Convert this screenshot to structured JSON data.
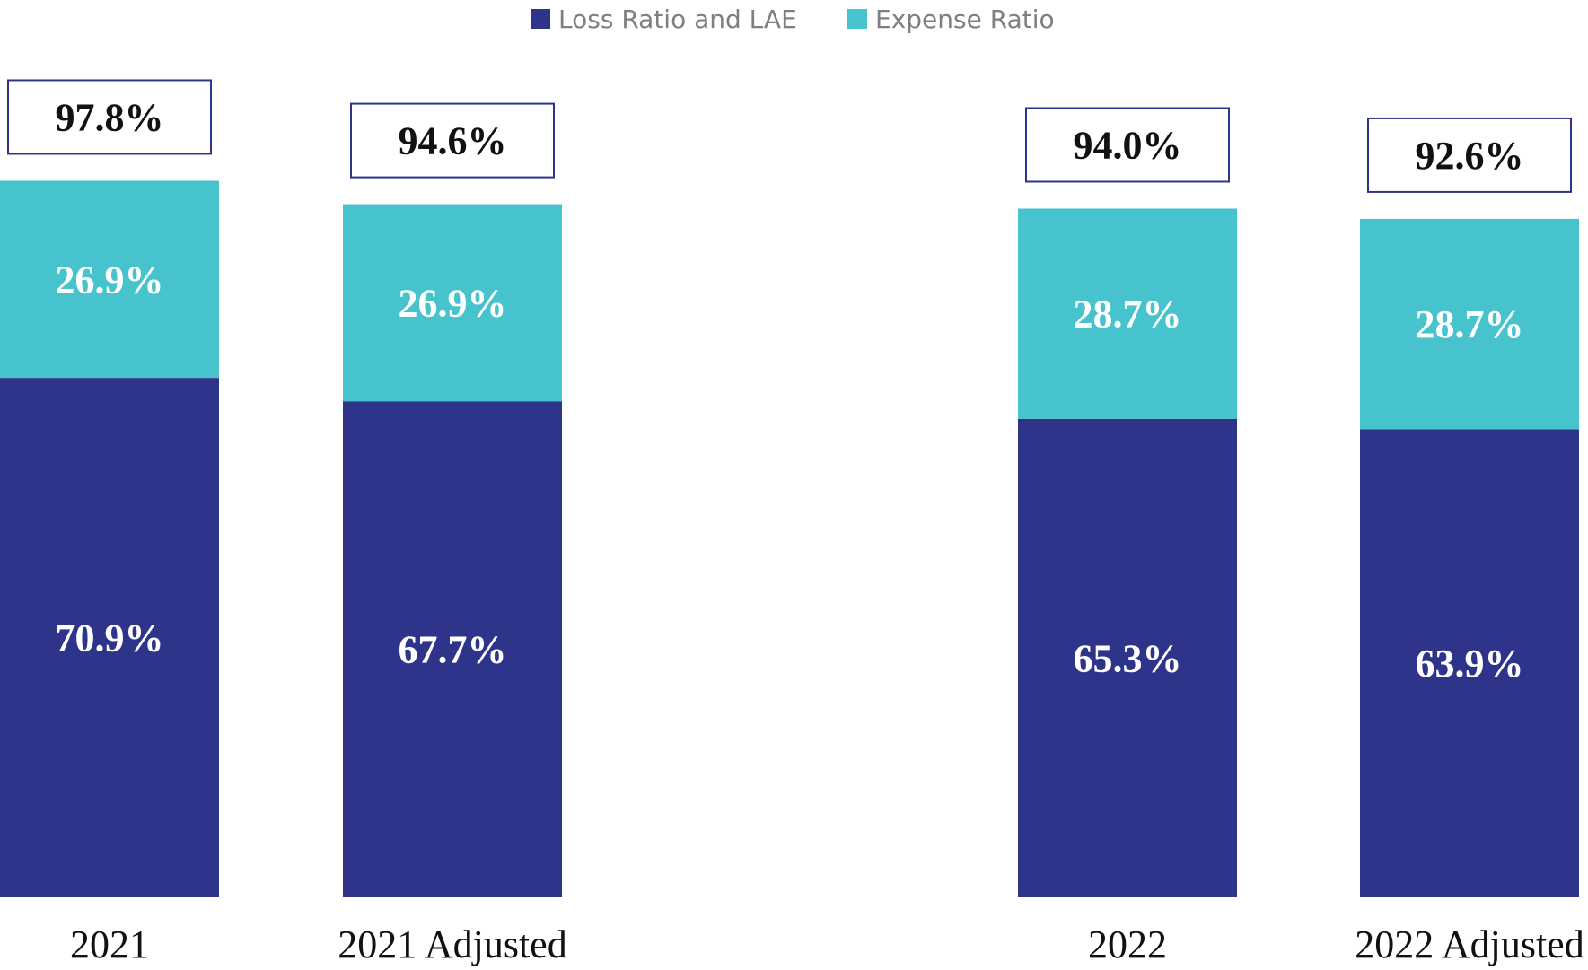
{
  "colors": {
    "loss": "#2e348a",
    "expense": "#47c3cd",
    "total_box_border": "#2e348a"
  },
  "legend": {
    "loss_label": "Loss Ratio and LAE",
    "expense_label": "Expense Ratio"
  },
  "chart_data": {
    "type": "bar",
    "stacked": true,
    "categories": [
      "2021",
      "2021 Adjusted",
      "2022",
      "2022 Adjusted"
    ],
    "series": [
      {
        "name": "Loss Ratio and LAE",
        "values": [
          70.9,
          67.7,
          65.3,
          63.9
        ],
        "labels": [
          "70.9%",
          "67.7%",
          "65.3%",
          "63.9%"
        ]
      },
      {
        "name": "Expense Ratio",
        "values": [
          26.9,
          26.9,
          28.7,
          28.7
        ],
        "labels": [
          "26.9%",
          "26.9%",
          "28.7%",
          "28.7%"
        ]
      }
    ],
    "totals": [
      97.8,
      94.6,
      94.0,
      92.6
    ],
    "total_labels": [
      "97.8%",
      "94.6%",
      "94.0%",
      "92.6%"
    ],
    "title": "",
    "xlabel": "",
    "ylabel": "",
    "ylim": [
      0,
      100
    ],
    "grid": false,
    "legend_position": "top-center"
  }
}
